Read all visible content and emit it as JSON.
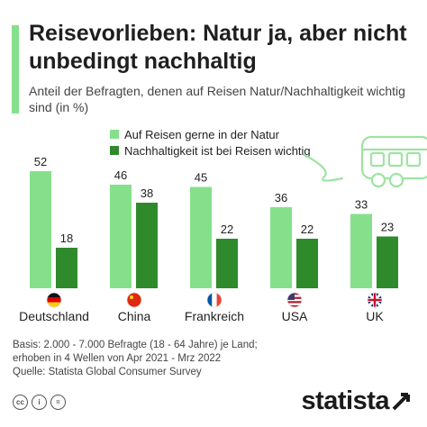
{
  "header": {
    "title": "Reisevorlieben: Natur ja, aber nicht unbedingt nachhaltig",
    "subtitle": "Anteil der Befragten, denen auf Reisen Natur/Nachhaltigkeit wichtig sind (in %)"
  },
  "colors": {
    "accent": "#86e08b",
    "series_light": "#86e08b",
    "series_dark": "#2f8a2c",
    "illustration": "#9fe3a3"
  },
  "chart_data": {
    "type": "bar",
    "title": "",
    "xlabel": "",
    "ylabel": "",
    "ylim": [
      0,
      55
    ],
    "grid": false,
    "legend_position": "top",
    "categories": [
      "Deutschland",
      "China",
      "Frankreich",
      "USA",
      "UK"
    ],
    "flag_icons": [
      "germany-flag-icon",
      "china-flag-icon",
      "france-flag-icon",
      "usa-flag-icon",
      "uk-flag-icon"
    ],
    "series": [
      {
        "name": "Auf Reisen gerne in der Natur",
        "values": [
          52,
          46,
          45,
          36,
          33
        ]
      },
      {
        "name": "Nachhaltigkeit ist bei Reisen wichtig",
        "values": [
          18,
          38,
          22,
          22,
          23
        ]
      }
    ]
  },
  "footer": {
    "basis_line1": "Basis: 2.000 - 7.000 Befragte (18 - 64 Jahre) je Land;",
    "basis_line2": "erhoben in 4 Wellen von Apr 2021 - Mrz 2022",
    "source": "Quelle: Statista Global Consumer Survey",
    "license_icons": [
      "cc-icon",
      "attribution-icon",
      "no-derivatives-icon"
    ],
    "brand": "statista"
  }
}
